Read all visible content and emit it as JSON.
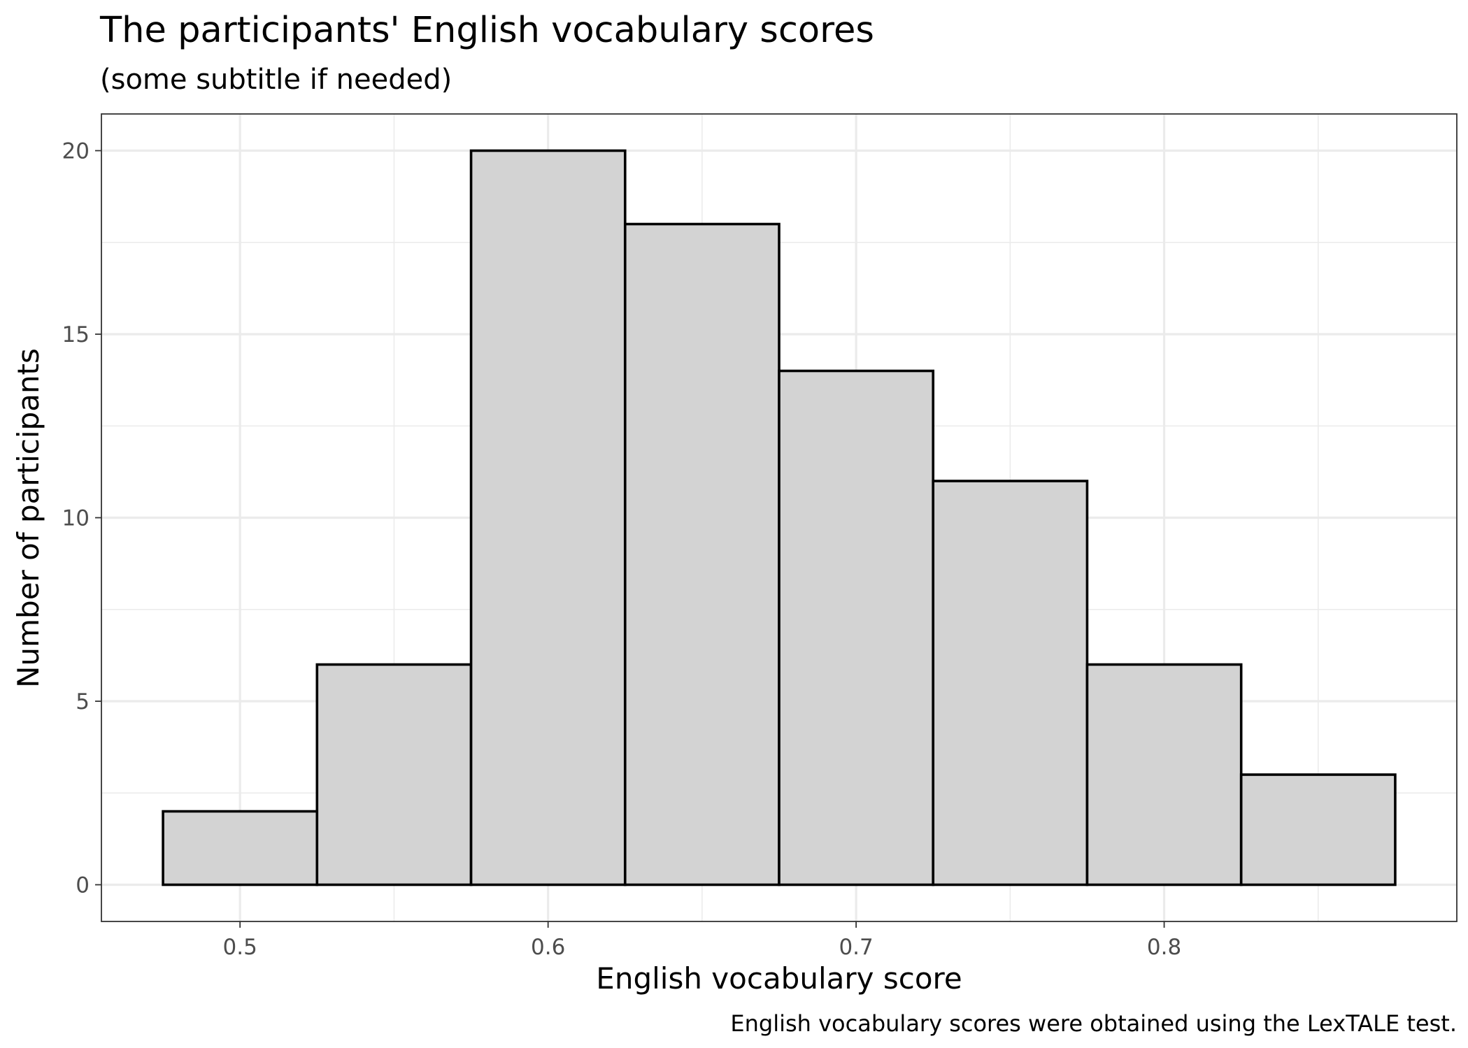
{
  "chart_data": {
    "type": "bar",
    "title": "The participants' English vocabulary scores",
    "subtitle": "(some subtitle if needed)",
    "xlabel": "English vocabulary score",
    "ylabel": "Number of participants",
    "caption": "English vocabulary scores were obtained using the LexTALE test.",
    "bin_width": 0.05,
    "bins": [
      {
        "center": 0.5,
        "count": 2
      },
      {
        "center": 0.55,
        "count": 6
      },
      {
        "center": 0.6,
        "count": 20
      },
      {
        "center": 0.65,
        "count": 18
      },
      {
        "center": 0.7,
        "count": 14
      },
      {
        "center": 0.75,
        "count": 11
      },
      {
        "center": 0.8,
        "count": 6
      },
      {
        "center": 0.85,
        "count": 3
      }
    ],
    "xlim": [
      0.455,
      0.895
    ],
    "ylim": [
      -1,
      21
    ],
    "x_ticks": [
      0.5,
      0.6,
      0.7,
      0.8
    ],
    "x_tick_labels": [
      "0.5",
      "0.6",
      "0.7",
      "0.8"
    ],
    "x_minor": [
      0.55,
      0.65,
      0.75,
      0.85
    ],
    "y_ticks": [
      0,
      5,
      10,
      15,
      20
    ],
    "y_tick_labels": [
      "0",
      "5",
      "10",
      "15",
      "20"
    ],
    "y_minor": [
      2.5,
      7.5,
      12.5,
      17.5
    ],
    "grid": true,
    "legend": "none",
    "colors": {
      "bar_fill": "#d3d3d3",
      "bar_outline": "#000000",
      "grid": "#ebebeb",
      "panel_border": "#333333",
      "tick_label": "#4d4d4d"
    }
  }
}
